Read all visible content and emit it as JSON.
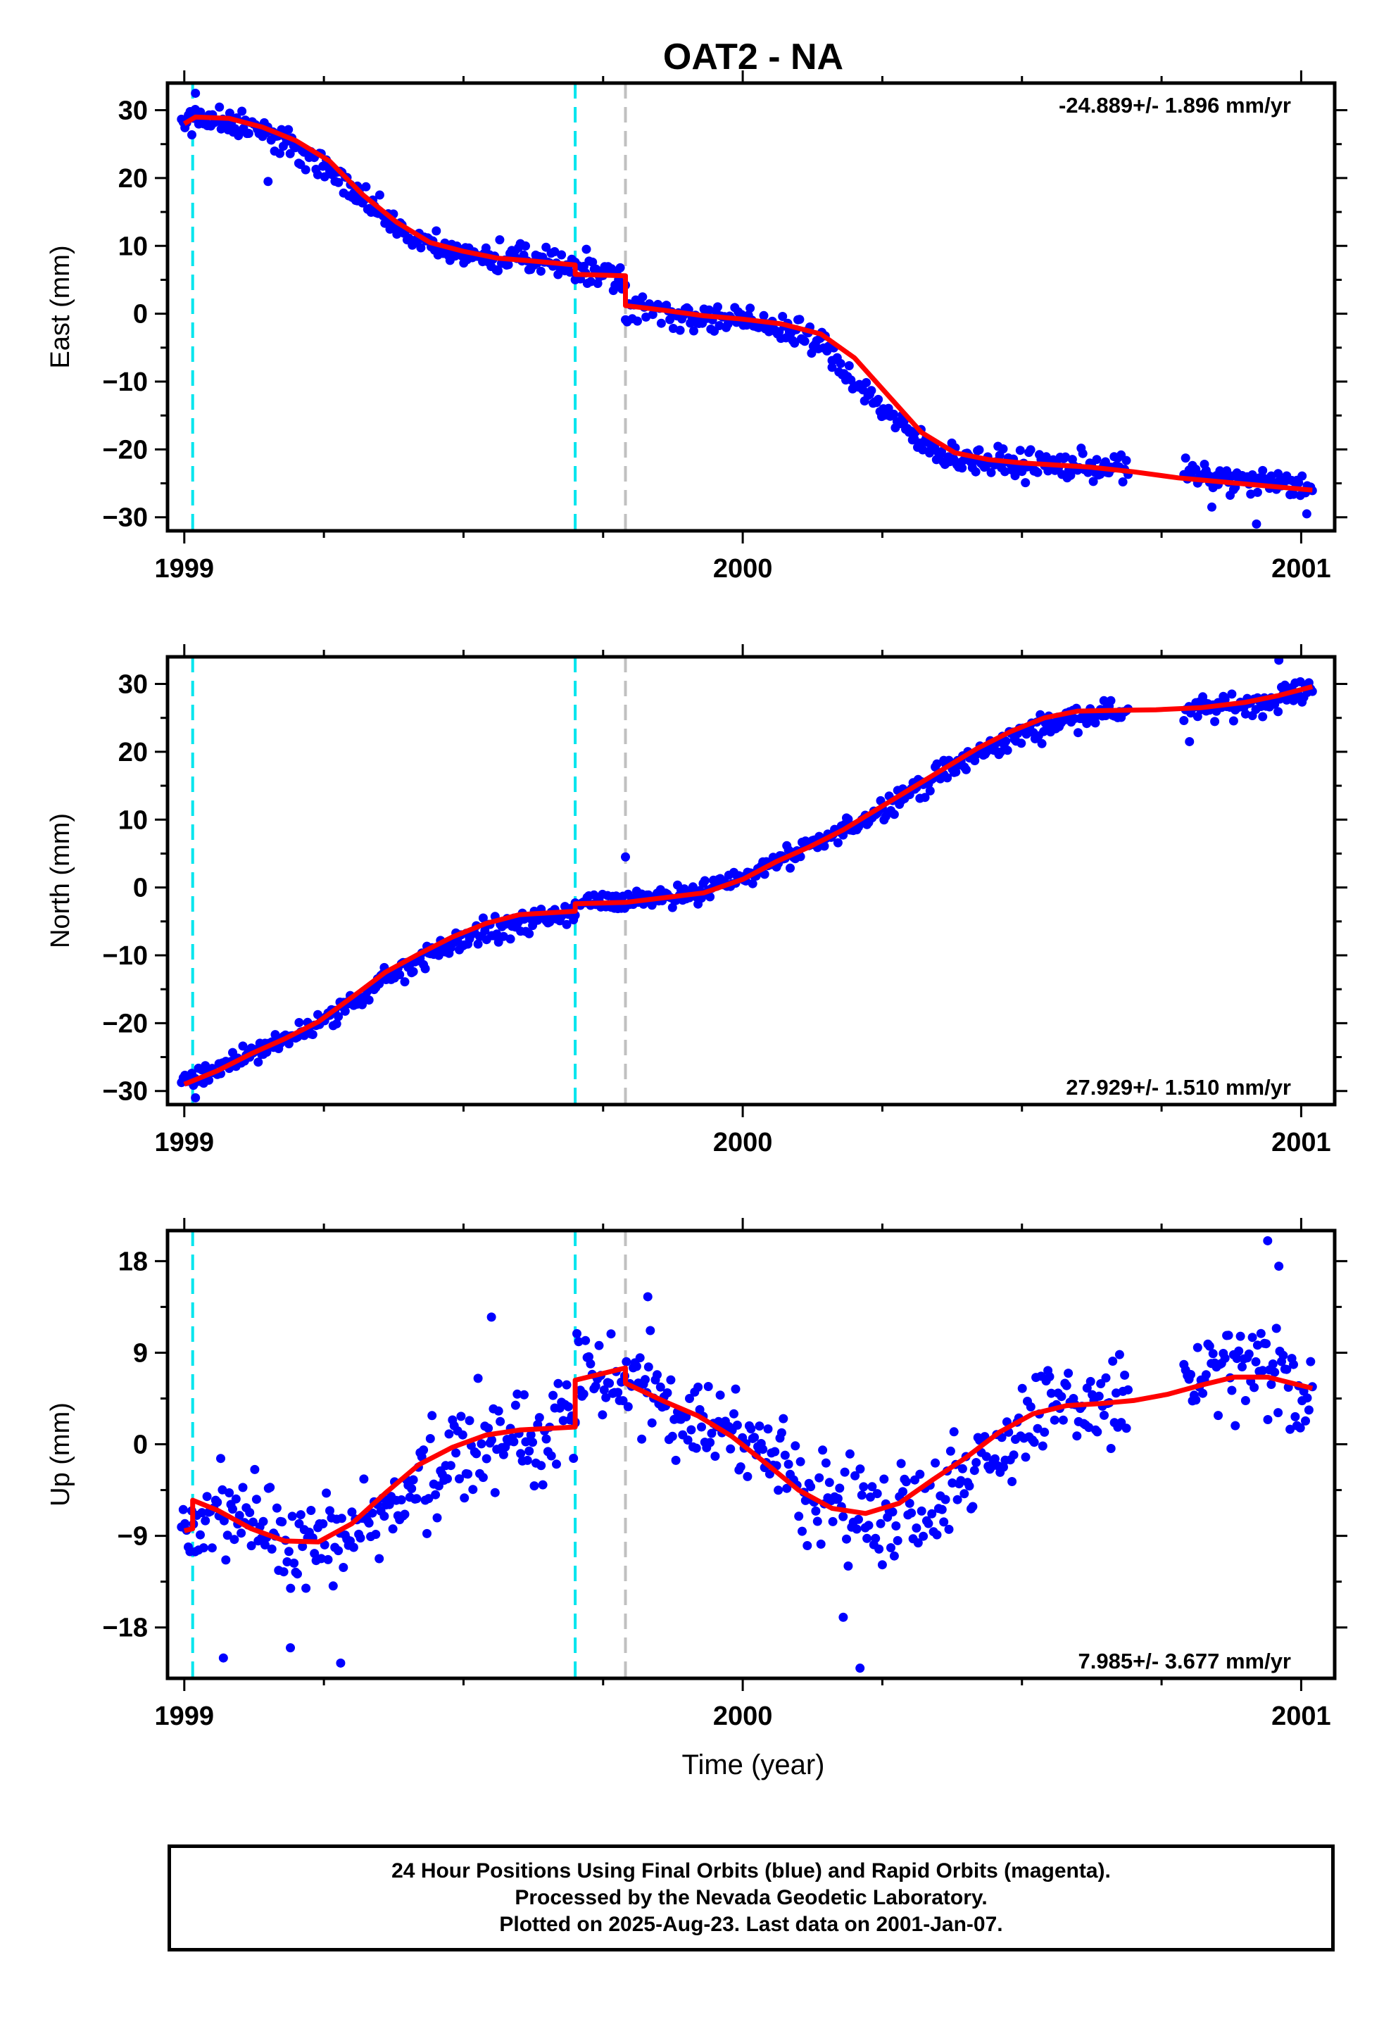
{
  "title": "OAT2 - NA",
  "colors": {
    "final_orbits": "#0000ff",
    "trend": "#ff0000",
    "equipment_change": "#00e5ee",
    "other_event": "#c0c0c0",
    "frame": "#000000"
  },
  "xlabel": "Time (year)",
  "footer": {
    "line1": "24 Hour Positions Using Final Orbits (blue) and Rapid Orbits (magenta).",
    "line2": "Processed by the Nevada Geodetic Laboratory.",
    "line3": "Plotted on 2025-Aug-23. Last data on 2001-Jan-07."
  },
  "chart_data": [
    {
      "type": "scatter",
      "panel": "east",
      "ylabel": "East (mm)",
      "rate_label": "-24.889+/- 1.896 mm/yr",
      "rate_position": "top-right",
      "xlim": [
        1998.97,
        2001.06
      ],
      "ylim": [
        -32,
        34
      ],
      "x_ticks": [
        1999,
        2000,
        2001
      ],
      "y_ticks": [
        -30,
        -20,
        -10,
        0,
        10,
        20,
        30
      ],
      "event_lines": [
        {
          "x": 1999.015,
          "kind": "equipment_change"
        },
        {
          "x": 1999.7,
          "kind": "equipment_change"
        },
        {
          "x": 1999.79,
          "kind": "other_event"
        }
      ],
      "trend": [
        [
          1999.0,
          28.0
        ],
        [
          1999.02,
          29.0
        ],
        [
          1999.08,
          28.8
        ],
        [
          1999.14,
          27.5
        ],
        [
          1999.2,
          25.5
        ],
        [
          1999.26,
          22.5
        ],
        [
          1999.32,
          17.5
        ],
        [
          1999.38,
          13.5
        ],
        [
          1999.44,
          10.5
        ],
        [
          1999.5,
          9.2
        ],
        [
          1999.56,
          8.2
        ],
        [
          1999.62,
          7.8
        ],
        [
          1999.7,
          7.2
        ],
        [
          1999.7,
          5.8
        ],
        [
          1999.79,
          5.6
        ],
        [
          1999.79,
          1.2
        ],
        [
          1999.86,
          0.5
        ],
        [
          1999.93,
          -0.3
        ],
        [
          2000.0,
          -0.8
        ],
        [
          2000.07,
          -1.5
        ],
        [
          2000.14,
          -3.0
        ],
        [
          2000.2,
          -6.5
        ],
        [
          2000.26,
          -12.0
        ],
        [
          2000.32,
          -17.5
        ],
        [
          2000.38,
          -20.5
        ],
        [
          2000.44,
          -21.5
        ],
        [
          2000.5,
          -22.0
        ],
        [
          2000.56,
          -22.3
        ],
        [
          2000.62,
          -22.6
        ],
        [
          2000.7,
          -23.3
        ],
        [
          2000.78,
          -24.2
        ],
        [
          2000.86,
          -24.8
        ],
        [
          2000.94,
          -25.4
        ],
        [
          2001.02,
          -26.0
        ]
      ],
      "segments": [
        {
          "start": 1998.995,
          "end": 1999.31,
          "base": [
            28.0,
            29.0,
            28.7,
            27.7,
            26.3,
            24.8,
            22.8,
            20.3,
            17.5
          ]
        },
        {
          "start": 1999.31,
          "end": 1999.7,
          "base": [
            17.5,
            14.5,
            11.0,
            9.4,
            8.8,
            8.4,
            8.0,
            7.6,
            7.2
          ]
        },
        {
          "start": 1999.7,
          "end": 1999.79,
          "base": [
            6.5,
            6.0,
            5.6
          ]
        },
        {
          "start": 1999.79,
          "end": 2000.16,
          "base": [
            1.0,
            0.5,
            0.0,
            -0.5,
            -1.0,
            -1.4,
            -2.0,
            -3.5,
            -5.5
          ]
        },
        {
          "start": 2000.16,
          "end": 2000.5,
          "base": [
            -6.5,
            -10.0,
            -13.5,
            -17.0,
            -19.5,
            -21.0,
            -21.6,
            -22.0,
            -22.2
          ]
        },
        {
          "start": 2000.5,
          "end": 2000.69,
          "base": [
            -22.2,
            -22.4,
            -22.6
          ]
        },
        {
          "start": 2000.79,
          "end": 2001.02,
          "base": [
            -23.6,
            -24.5,
            -25.0,
            -25.6
          ]
        }
      ],
      "scatter": 1.9,
      "outliers": [
        [
          1999.02,
          32.5
        ],
        [
          1999.15,
          19.5
        ],
        [
          1999.72,
          9.5
        ],
        [
          2000.92,
          -31.0
        ],
        [
          2000.84,
          -28.5
        ],
        [
          2001.01,
          -29.5
        ]
      ]
    },
    {
      "type": "scatter",
      "panel": "north",
      "ylabel": "North (mm)",
      "rate_label": "27.929+/- 1.510 mm/yr",
      "rate_position": "bottom-right",
      "xlim": [
        1998.97,
        2001.06
      ],
      "ylim": [
        -32,
        34
      ],
      "x_ticks": [
        1999,
        2000,
        2001
      ],
      "y_ticks": [
        -30,
        -20,
        -10,
        0,
        10,
        20,
        30
      ],
      "event_lines": [
        {
          "x": 1999.015,
          "kind": "equipment_change"
        },
        {
          "x": 1999.7,
          "kind": "equipment_change"
        },
        {
          "x": 1999.79,
          "kind": "other_event"
        }
      ],
      "trend": [
        [
          1999.0,
          -29.0
        ],
        [
          1999.06,
          -27.0
        ],
        [
          1999.12,
          -24.5
        ],
        [
          1999.18,
          -22.3
        ],
        [
          1999.24,
          -19.8
        ],
        [
          1999.3,
          -16.2
        ],
        [
          1999.36,
          -12.5
        ],
        [
          1999.42,
          -9.8
        ],
        [
          1999.48,
          -7.3
        ],
        [
          1999.54,
          -5.3
        ],
        [
          1999.6,
          -4.0
        ],
        [
          1999.7,
          -3.5
        ],
        [
          1999.7,
          -2.4
        ],
        [
          1999.79,
          -2.2
        ],
        [
          1999.86,
          -1.5
        ],
        [
          1999.93,
          -0.8
        ],
        [
          2000.0,
          1.2
        ],
        [
          2000.06,
          3.8
        ],
        [
          2000.12,
          6.0
        ],
        [
          2000.18,
          8.5
        ],
        [
          2000.24,
          11.5
        ],
        [
          2000.3,
          14.5
        ],
        [
          2000.36,
          17.5
        ],
        [
          2000.42,
          20.5
        ],
        [
          2000.48,
          23.0
        ],
        [
          2000.54,
          25.0
        ],
        [
          2000.6,
          26.0
        ],
        [
          2000.66,
          26.1
        ],
        [
          2000.74,
          26.2
        ],
        [
          2000.82,
          26.5
        ],
        [
          2000.9,
          27.3
        ],
        [
          2000.96,
          28.3
        ],
        [
          2001.02,
          29.6
        ]
      ],
      "segments": [
        {
          "start": 1998.995,
          "end": 1999.7,
          "base": [
            -29.0,
            -26.5,
            -24.0,
            -21.5,
            -18.5,
            -14.5,
            -10.5,
            -8.0,
            -6.0,
            -4.8,
            -4.0
          ]
        },
        {
          "start": 1999.7,
          "end": 2000.36,
          "base": [
            -2.5,
            -2.0,
            -1.4,
            -0.5,
            1.2,
            4.0,
            6.5,
            10.0,
            13.5,
            17.0
          ]
        },
        {
          "start": 2000.36,
          "end": 2000.69,
          "base": [
            17.0,
            20.5,
            23.5,
            25.5,
            26.0
          ]
        },
        {
          "start": 2000.79,
          "end": 2001.02,
          "base": [
            26.0,
            26.6,
            27.5,
            29.4
          ]
        }
      ],
      "scatter": 1.6,
      "outliers": [
        [
          1999.79,
          4.5
        ],
        [
          2000.96,
          33.5
        ],
        [
          2000.8,
          21.5
        ],
        [
          1999.02,
          -31.0
        ]
      ]
    },
    {
      "type": "scatter",
      "panel": "up",
      "ylabel": "Up (mm)",
      "rate_label": "7.985+/- 3.677 mm/yr",
      "rate_position": "bottom-right",
      "xlim": [
        1998.97,
        2001.06
      ],
      "ylim": [
        -23,
        21
      ],
      "x_ticks": [
        1999,
        2000,
        2001
      ],
      "y_ticks": [
        -18,
        -9,
        0,
        9,
        18
      ],
      "event_lines": [
        {
          "x": 1999.015,
          "kind": "equipment_change"
        },
        {
          "x": 1999.7,
          "kind": "equipment_change"
        },
        {
          "x": 1999.79,
          "kind": "other_event"
        }
      ],
      "trend": [
        [
          1999.0,
          -8.5
        ],
        [
          1999.015,
          -8.3
        ],
        [
          1999.015,
          -5.5
        ],
        [
          1999.06,
          -6.5
        ],
        [
          1999.12,
          -8.3
        ],
        [
          1999.18,
          -9.5
        ],
        [
          1999.24,
          -9.6
        ],
        [
          1999.3,
          -7.8
        ],
        [
          1999.36,
          -4.8
        ],
        [
          1999.42,
          -2.0
        ],
        [
          1999.48,
          -0.3
        ],
        [
          1999.54,
          0.9
        ],
        [
          1999.6,
          1.4
        ],
        [
          1999.7,
          1.7
        ],
        [
          1999.7,
          6.3
        ],
        [
          1999.79,
          7.5
        ],
        [
          1999.79,
          6.0
        ],
        [
          1999.86,
          4.2
        ],
        [
          1999.92,
          2.8
        ],
        [
          1999.98,
          0.8
        ],
        [
          2000.04,
          -1.8
        ],
        [
          2000.1,
          -4.5
        ],
        [
          2000.16,
          -6.3
        ],
        [
          2000.22,
          -6.8
        ],
        [
          2000.28,
          -5.8
        ],
        [
          2000.34,
          -3.5
        ],
        [
          2000.4,
          -1.3
        ],
        [
          2000.46,
          1.2
        ],
        [
          2000.52,
          3.0
        ],
        [
          2000.58,
          3.8
        ],
        [
          2000.64,
          4.0
        ],
        [
          2000.7,
          4.3
        ],
        [
          2000.76,
          4.9
        ],
        [
          2000.82,
          5.8
        ],
        [
          2000.88,
          6.6
        ],
        [
          2000.94,
          6.6
        ],
        [
          2001.02,
          5.5
        ]
      ],
      "segments": [
        {
          "start": 1998.995,
          "end": 1999.7,
          "base": [
            -8.5,
            -6.5,
            -8.5,
            -9.8,
            -9.5,
            -7.5,
            -4.0,
            -1.0,
            0.5,
            1.5,
            1.8
          ]
        },
        {
          "start": 1999.7,
          "end": 2000.69,
          "base": [
            6.8,
            6.0,
            4.0,
            1.5,
            -2.0,
            -5.5,
            -7.0,
            -5.5,
            -2.0,
            2.0,
            3.8,
            4.2
          ]
        },
        {
          "start": 2000.79,
          "end": 2001.02,
          "base": [
            6.0,
            7.2,
            6.8,
            5.2
          ]
        }
      ],
      "scatter": 4.2,
      "outliers": [
        [
          1999.07,
          -21.0
        ],
        [
          1999.19,
          -20.0
        ],
        [
          1999.28,
          -21.5
        ],
        [
          2000.21,
          -22.0
        ],
        [
          2000.94,
          20.0
        ],
        [
          2000.96,
          17.5
        ],
        [
          1999.83,
          14.5
        ],
        [
          2000.18,
          -17.0
        ],
        [
          1999.55,
          12.5
        ]
      ]
    }
  ]
}
